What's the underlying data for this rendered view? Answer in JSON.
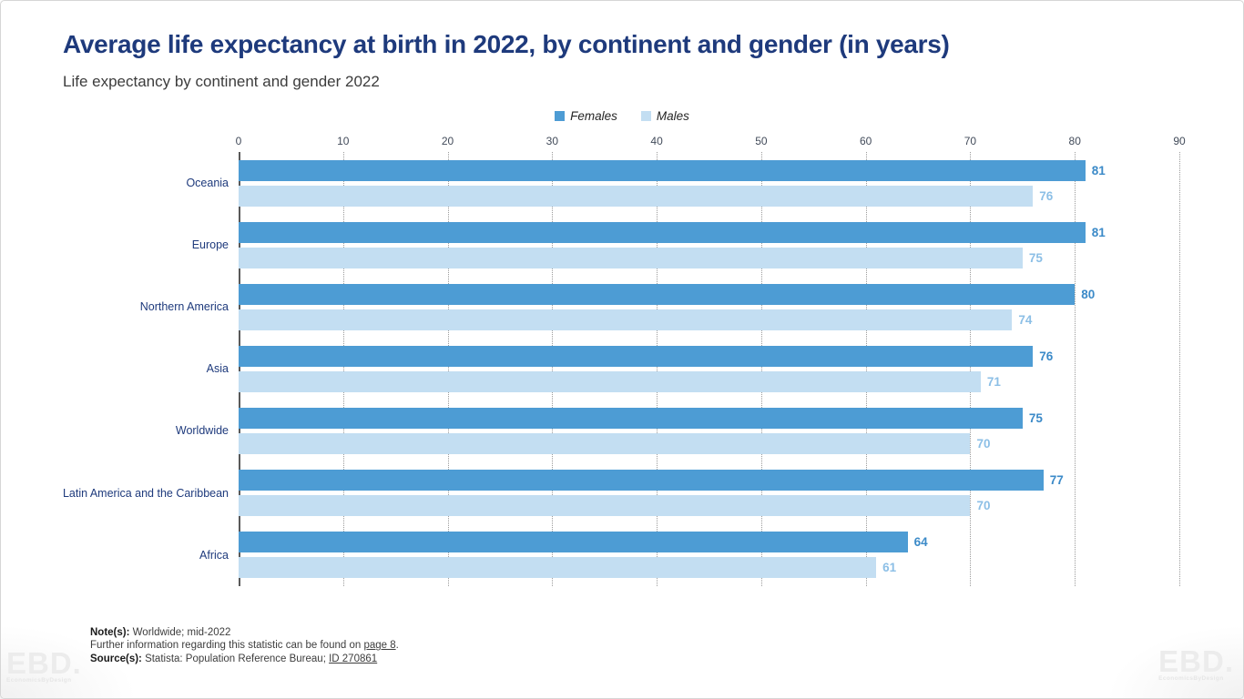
{
  "header": {
    "title": "Average life expectancy at birth in 2022, by continent and gender (in years)",
    "subtitle": "Life expectancy by continent and gender 2022"
  },
  "colors": {
    "title_navy": "#1e3a7c",
    "female_bar": "#4d9cd4",
    "male_bar": "#c3def2",
    "female_value_label": "#3b8ac8",
    "male_value_label": "#8cbfe6",
    "gridline": "#9b9b9b"
  },
  "chart_data": {
    "type": "bar",
    "orientation": "horizontal",
    "title": "Average life expectancy at birth in 2022, by continent and gender (in years)",
    "subtitle": "Life expectancy by continent and gender 2022",
    "categories": [
      "Oceania",
      "Europe",
      "Northern America",
      "Asia",
      "Worldwide",
      "Latin America and the Caribbean",
      "Africa"
    ],
    "series": [
      {
        "name": "Females",
        "color": "#4d9cd4",
        "label_color": "#3b8ac8",
        "values": [
          81,
          81,
          80,
          76,
          75,
          77,
          64
        ]
      },
      {
        "name": "Males",
        "color": "#c3def2",
        "label_color": "#8cbfe6",
        "values": [
          76,
          75,
          74,
          71,
          70,
          70,
          61
        ]
      }
    ],
    "xlabel": "",
    "ylabel": "",
    "xlim": [
      0,
      90
    ],
    "xticks": [
      0,
      10,
      20,
      30,
      40,
      50,
      60,
      70,
      80,
      90
    ],
    "grid": "dotted-vertical",
    "legend_position": "top-center"
  },
  "legend": [
    {
      "label": "Females",
      "color": "#4d9cd4"
    },
    {
      "label": "Males",
      "color": "#c3def2"
    }
  ],
  "notes": {
    "note_label": "Note(s):",
    "note_text": " Worldwide; mid-2022",
    "further_text_before": "Further information regarding this statistic can be found on ",
    "further_link": "page 8",
    "further_text_after": ".",
    "source_label": "Source(s):",
    "source_text": " Statista: Population Reference Bureau; ",
    "source_link": "ID 270861"
  },
  "watermarks": {
    "left": {
      "text": "EBD.",
      "tagline": "EconomicsByDesign"
    },
    "right": {
      "text": "EBD.",
      "tagline": "EconomicsByDesign"
    }
  }
}
